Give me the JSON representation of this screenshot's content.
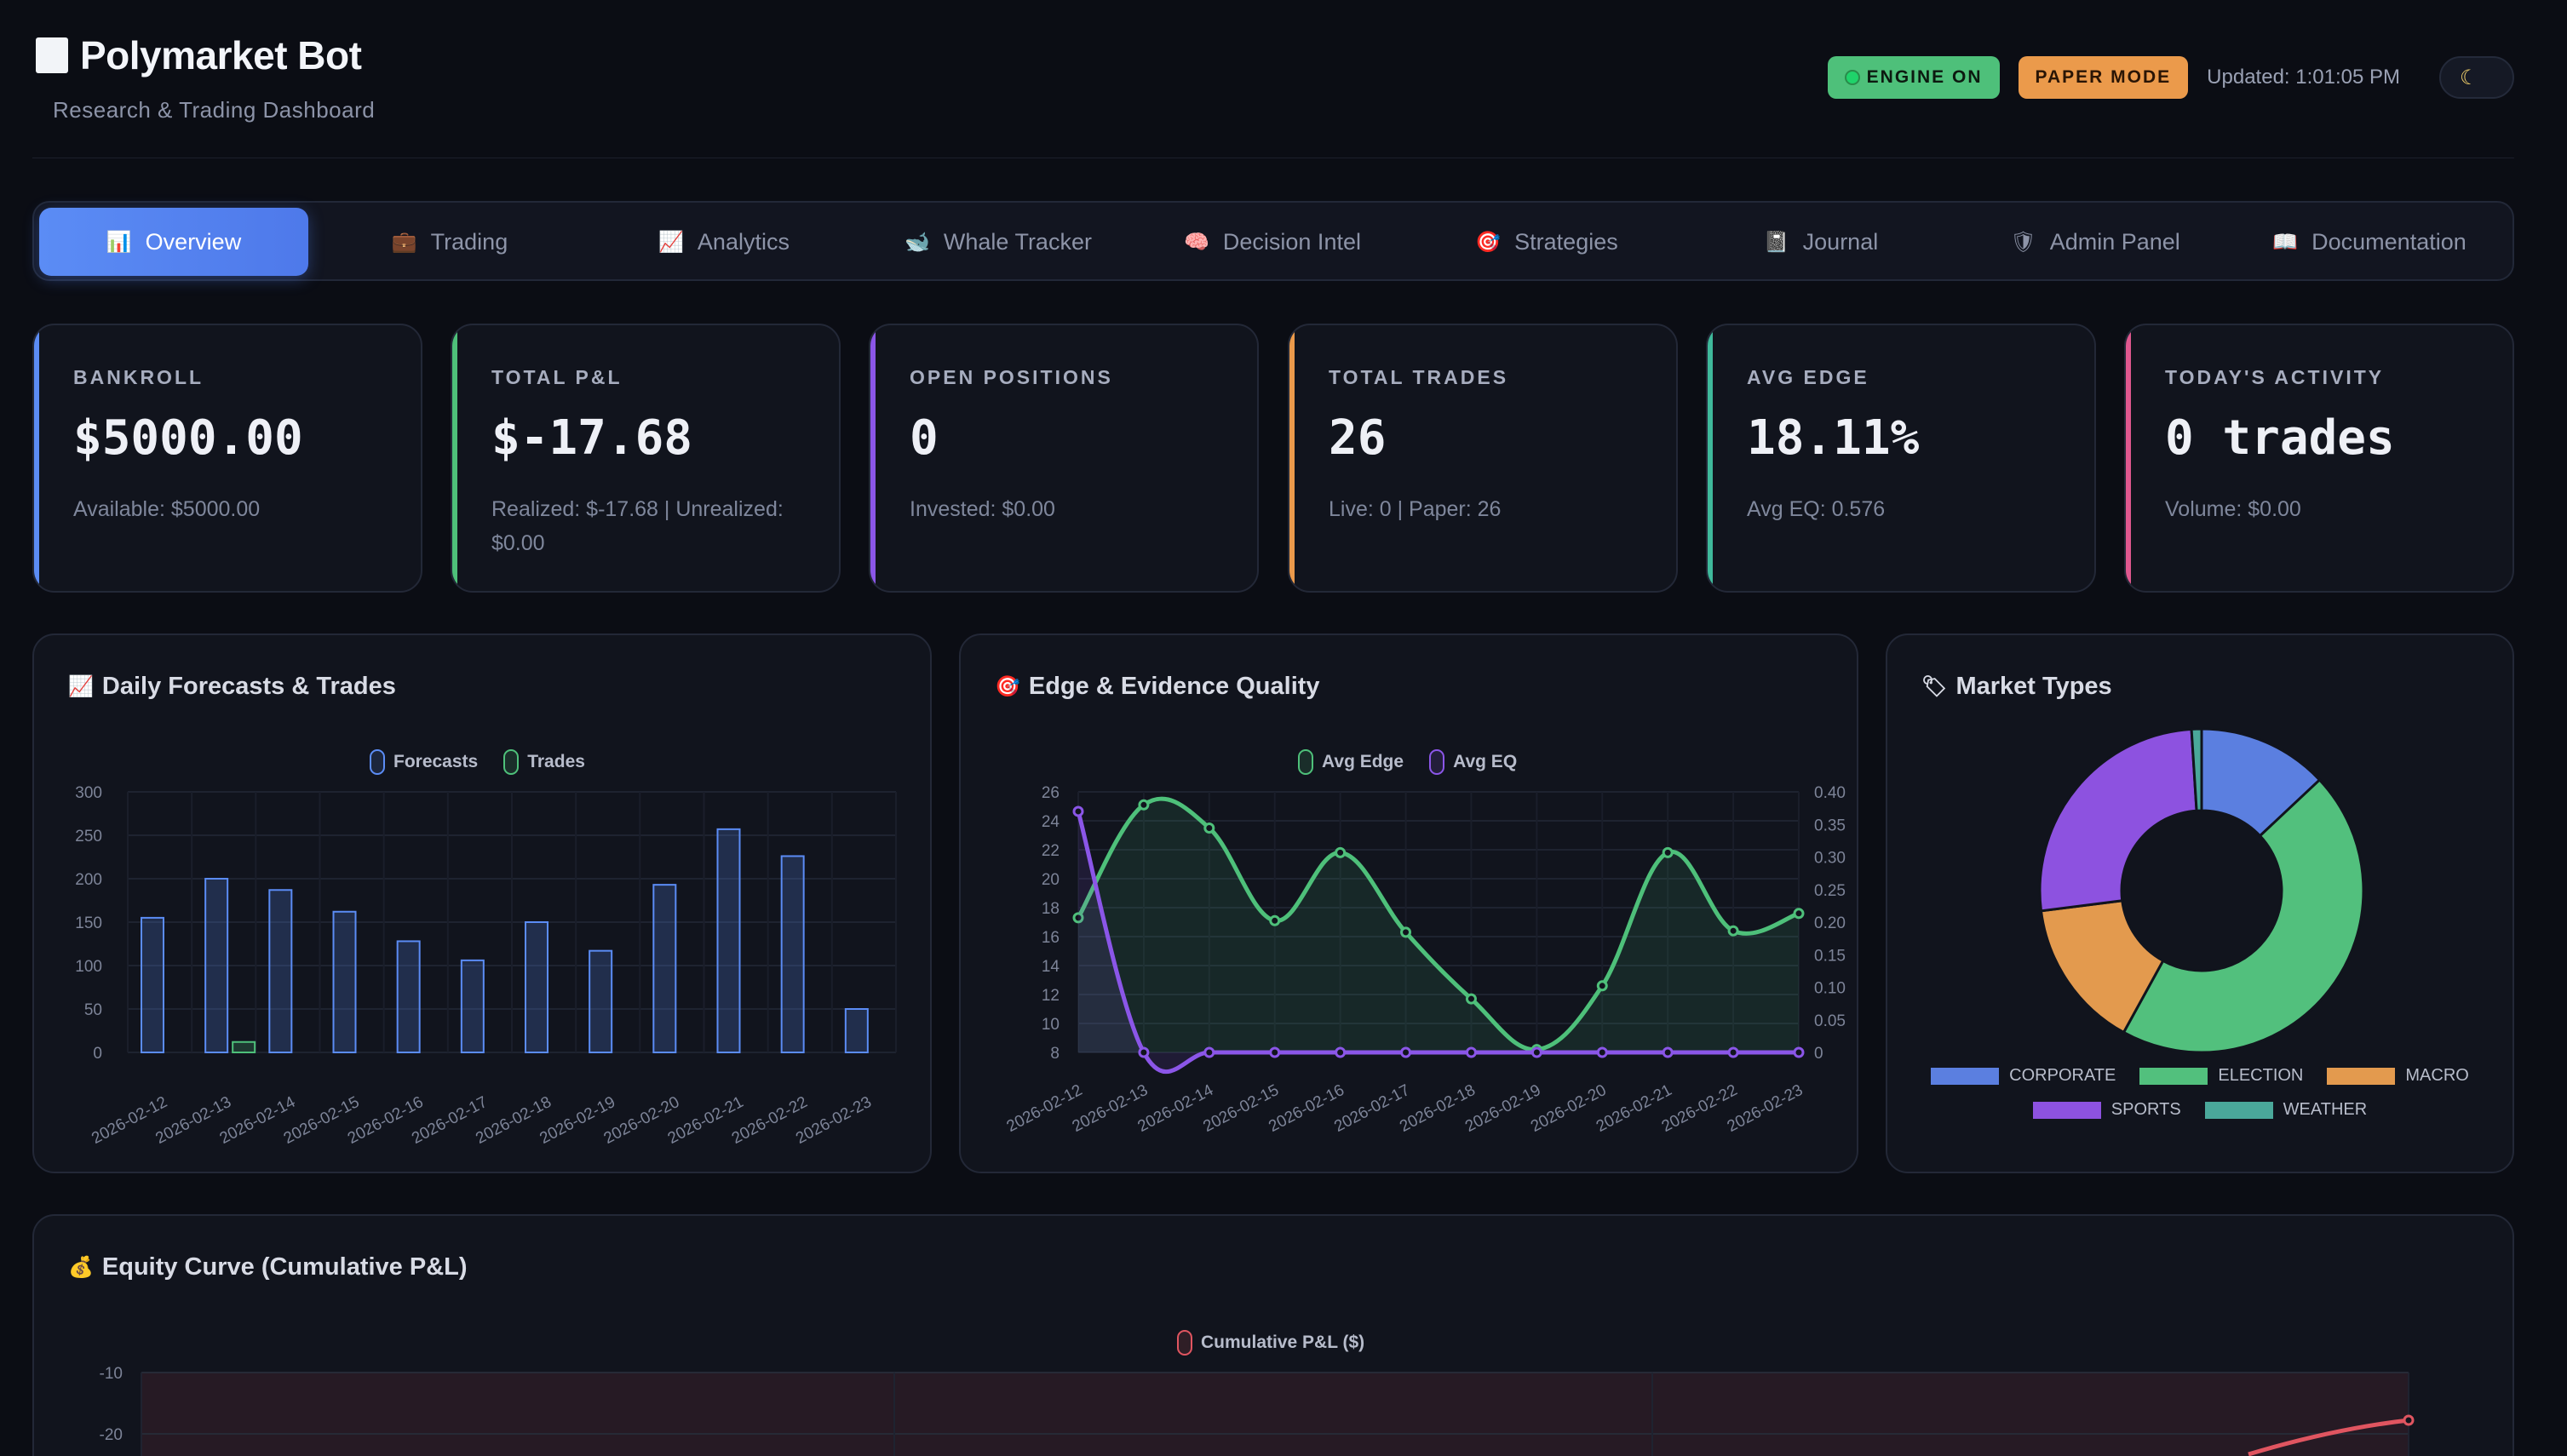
{
  "header": {
    "title": "Polymarket Bot",
    "subtitle": "Research & Trading Dashboard",
    "engine_badge": "ENGINE ON",
    "mode_badge": "PAPER MODE",
    "updated": "Updated: 1:01:05 PM",
    "theme_icon": "moon-icon"
  },
  "tabs": [
    {
      "label": "Overview",
      "icon": "📊",
      "active": true
    },
    {
      "label": "Trading",
      "icon": "💼"
    },
    {
      "label": "Analytics",
      "icon": "📈"
    },
    {
      "label": "Whale Tracker",
      "icon": "🐋"
    },
    {
      "label": "Decision Intel",
      "icon": "🧠"
    },
    {
      "label": "Strategies",
      "icon": "🎯"
    },
    {
      "label": "Journal",
      "icon": "📓"
    },
    {
      "label": "Admin Panel",
      "icon": "🛡"
    },
    {
      "label": "Documentation",
      "icon": "📖"
    }
  ],
  "stats": [
    {
      "label": "BANKROLL",
      "value": "$5000.00",
      "sub": "Available: $5000.00",
      "color": "#5b8cf5"
    },
    {
      "label": "TOTAL P&L",
      "value": "$-17.68",
      "sub": "Realized: $-17.68 | Unrealized: $0.00",
      "color": "#4ec07a"
    },
    {
      "label": "OPEN POSITIONS",
      "value": "0",
      "sub": "Invested: $0.00",
      "color": "#8b56e8"
    },
    {
      "label": "TOTAL TRADES",
      "value": "26",
      "sub": "Live: 0 | Paper: 26",
      "color": "#eb9a4b"
    },
    {
      "label": "AVG EDGE",
      "value": "18.11%",
      "sub": "Avg EQ: 0.576",
      "color": "#3fb99b"
    },
    {
      "label": "TODAY'S ACTIVITY",
      "value": "0 trades",
      "sub": "Volume: $0.00",
      "color": "#e0588f"
    }
  ],
  "panels": {
    "daily": {
      "title": "Daily Forecasts & Trades",
      "icon": "📈"
    },
    "edge": {
      "title": "Edge & Evidence Quality",
      "icon": "🎯"
    },
    "types": {
      "title": "Market Types",
      "icon": "🏷"
    },
    "equity": {
      "title": "Equity Curve (Cumulative P&L)",
      "icon": "💰"
    }
  },
  "chart_data": [
    {
      "type": "bar",
      "title": "Daily Forecasts & Trades",
      "categories": [
        "2026-02-12",
        "2026-02-13",
        "2026-02-14",
        "2026-02-15",
        "2026-02-16",
        "2026-02-17",
        "2026-02-18",
        "2026-02-19",
        "2026-02-20",
        "2026-02-21",
        "2026-02-22",
        "2026-02-23"
      ],
      "series": [
        {
          "name": "Forecasts",
          "values": [
            155,
            200,
            187,
            162,
            128,
            106,
            150,
            117,
            193,
            257,
            226,
            50
          ],
          "color": "#5b8cf5"
        },
        {
          "name": "Trades",
          "values": [
            0,
            12,
            0,
            0,
            0,
            0,
            0,
            0,
            0,
            0,
            0,
            0
          ],
          "color": "#4ec07a"
        }
      ],
      "yticks": [
        0,
        50,
        100,
        150,
        200,
        250,
        300
      ],
      "ylim": [
        0,
        300
      ],
      "legend": "top"
    },
    {
      "type": "line",
      "title": "Edge & Evidence Quality",
      "categories": [
        "2026-02-12",
        "2026-02-13",
        "2026-02-14",
        "2026-02-15",
        "2026-02-16",
        "2026-02-17",
        "2026-02-18",
        "2026-02-19",
        "2026-02-20",
        "2026-02-21",
        "2026-02-22",
        "2026-02-23"
      ],
      "series": [
        {
          "name": "Avg Edge",
          "axis": "left",
          "values": [
            17.3,
            25.1,
            23.5,
            17.1,
            21.8,
            16.3,
            11.7,
            8.2,
            12.6,
            21.8,
            16.4,
            17.6
          ],
          "color": "#4ec07a"
        },
        {
          "name": "Avg EQ",
          "axis": "right",
          "values": [
            0.37,
            0,
            0,
            0,
            0,
            0,
            0,
            0,
            0,
            0,
            0,
            0
          ],
          "color": "#8b56e8"
        }
      ],
      "yticks_left": [
        8,
        10,
        12,
        14,
        16,
        18,
        20,
        22,
        24,
        26
      ],
      "ylim_left": [
        8,
        26
      ],
      "yticks_right": [
        "0",
        "0.05",
        "0.10",
        "0.15",
        "0.20",
        "0.25",
        "0.30",
        "0.35",
        "0.40"
      ],
      "ylim_right": [
        0,
        0.4
      ],
      "legend": "top"
    },
    {
      "type": "pie",
      "title": "Market Types",
      "labels": [
        "CORPORATE",
        "ELECTION",
        "MACRO",
        "SPORTS",
        "WEATHER"
      ],
      "values": [
        13,
        45,
        15,
        26,
        1
      ],
      "colors": [
        "#5b7fe0",
        "#52c07d",
        "#e39a4e",
        "#8d52e0",
        "#4aa89a"
      ],
      "legend": "bottom"
    },
    {
      "type": "line",
      "title": "Equity Curve (Cumulative P&L)",
      "series": [
        {
          "name": "Cumulative P&L ($)",
          "color": "#e05560"
        }
      ],
      "yticks": [
        -10,
        -20
      ],
      "legend": "top"
    }
  ]
}
